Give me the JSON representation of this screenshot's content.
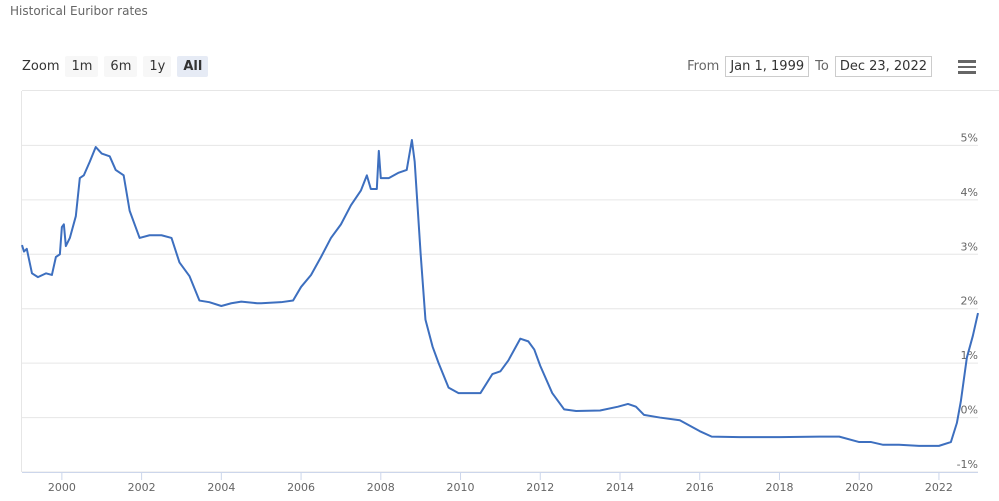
{
  "chart_data": {
    "type": "line",
    "title": "Historical Euribor rates",
    "zoom_label": "Zoom",
    "zoom_buttons": [
      "1m",
      "6m",
      "1y",
      "All"
    ],
    "zoom_selected": 3,
    "from_label": "From",
    "from": "Jan 1, 1999",
    "to_label": "To",
    "to": "Dec 23, 2022",
    "color": "#3d6fbf",
    "grid": true,
    "xlim": [
      1999,
      2022.98
    ],
    "xticks": [
      2000,
      2002,
      2004,
      2006,
      2008,
      2010,
      2012,
      2014,
      2016,
      2018,
      2020,
      2022
    ],
    "ylim": [
      -1,
      6
    ],
    "yticks": [
      {
        "value": -1,
        "label": "-1%"
      },
      {
        "value": 0,
        "label": "0%"
      },
      {
        "value": 1,
        "label": "1%"
      },
      {
        "value": 2,
        "label": "2%"
      },
      {
        "value": 3,
        "label": "3%"
      },
      {
        "value": 4,
        "label": "4%"
      },
      {
        "value": 5,
        "label": "5%"
      }
    ],
    "x": [
      1999.0,
      1999.05,
      1999.12,
      1999.25,
      1999.4,
      1999.6,
      1999.75,
      1999.85,
      1999.95,
      2000.0,
      2000.05,
      2000.1,
      2000.2,
      2000.35,
      2000.45,
      2000.55,
      2000.7,
      2000.85,
      2001.0,
      2001.2,
      2001.35,
      2001.55,
      2001.7,
      2001.85,
      2001.95,
      2002.2,
      2002.5,
      2002.75,
      2002.95,
      2003.2,
      2003.45,
      2003.7,
      2004.0,
      2004.25,
      2004.5,
      2004.9,
      2005.0,
      2005.5,
      2005.8,
      2006.0,
      2006.25,
      2006.5,
      2006.75,
      2007.0,
      2007.25,
      2007.5,
      2007.65,
      2007.75,
      2007.9,
      2007.95,
      2008.0,
      2008.2,
      2008.45,
      2008.65,
      2008.78,
      2008.85,
      2009.0,
      2009.12,
      2009.3,
      2009.45,
      2009.7,
      2009.95,
      2010.2,
      2010.5,
      2010.8,
      2011.0,
      2011.2,
      2011.5,
      2011.7,
      2011.85,
      2012.0,
      2012.3,
      2012.6,
      2012.9,
      2013.5,
      2013.95,
      2014.2,
      2014.4,
      2014.6,
      2015.0,
      2015.5,
      2016.0,
      2016.3,
      2017.0,
      2018.0,
      2019.0,
      2019.5,
      2020.0,
      2020.3,
      2020.6,
      2021.0,
      2021.5,
      2022.0,
      2022.3,
      2022.45,
      2022.55,
      2022.7,
      2022.85,
      2022.98
    ],
    "values": [
      3.17,
      3.05,
      3.1,
      2.65,
      2.58,
      2.65,
      2.62,
      2.95,
      3.0,
      3.5,
      3.55,
      3.15,
      3.3,
      3.7,
      4.4,
      4.45,
      4.7,
      4.97,
      4.85,
      4.8,
      4.55,
      4.45,
      3.8,
      3.5,
      3.3,
      3.35,
      3.35,
      3.3,
      2.85,
      2.6,
      2.15,
      2.12,
      2.05,
      2.1,
      2.13,
      2.1,
      2.1,
      2.12,
      2.15,
      2.4,
      2.62,
      2.95,
      3.3,
      3.55,
      3.9,
      4.17,
      4.45,
      4.2,
      4.2,
      4.9,
      4.4,
      4.4,
      4.5,
      4.55,
      5.1,
      4.7,
      3.0,
      1.8,
      1.3,
      1.0,
      0.55,
      0.45,
      0.45,
      0.45,
      0.8,
      0.85,
      1.05,
      1.45,
      1.4,
      1.25,
      0.95,
      0.45,
      0.15,
      0.12,
      0.13,
      0.2,
      0.25,
      0.2,
      0.05,
      0.0,
      -0.05,
      -0.25,
      -0.35,
      -0.36,
      -0.36,
      -0.35,
      -0.35,
      -0.45,
      -0.45,
      -0.5,
      -0.5,
      -0.52,
      -0.52,
      -0.45,
      -0.1,
      0.3,
      1.1,
      1.5,
      1.92
    ]
  }
}
